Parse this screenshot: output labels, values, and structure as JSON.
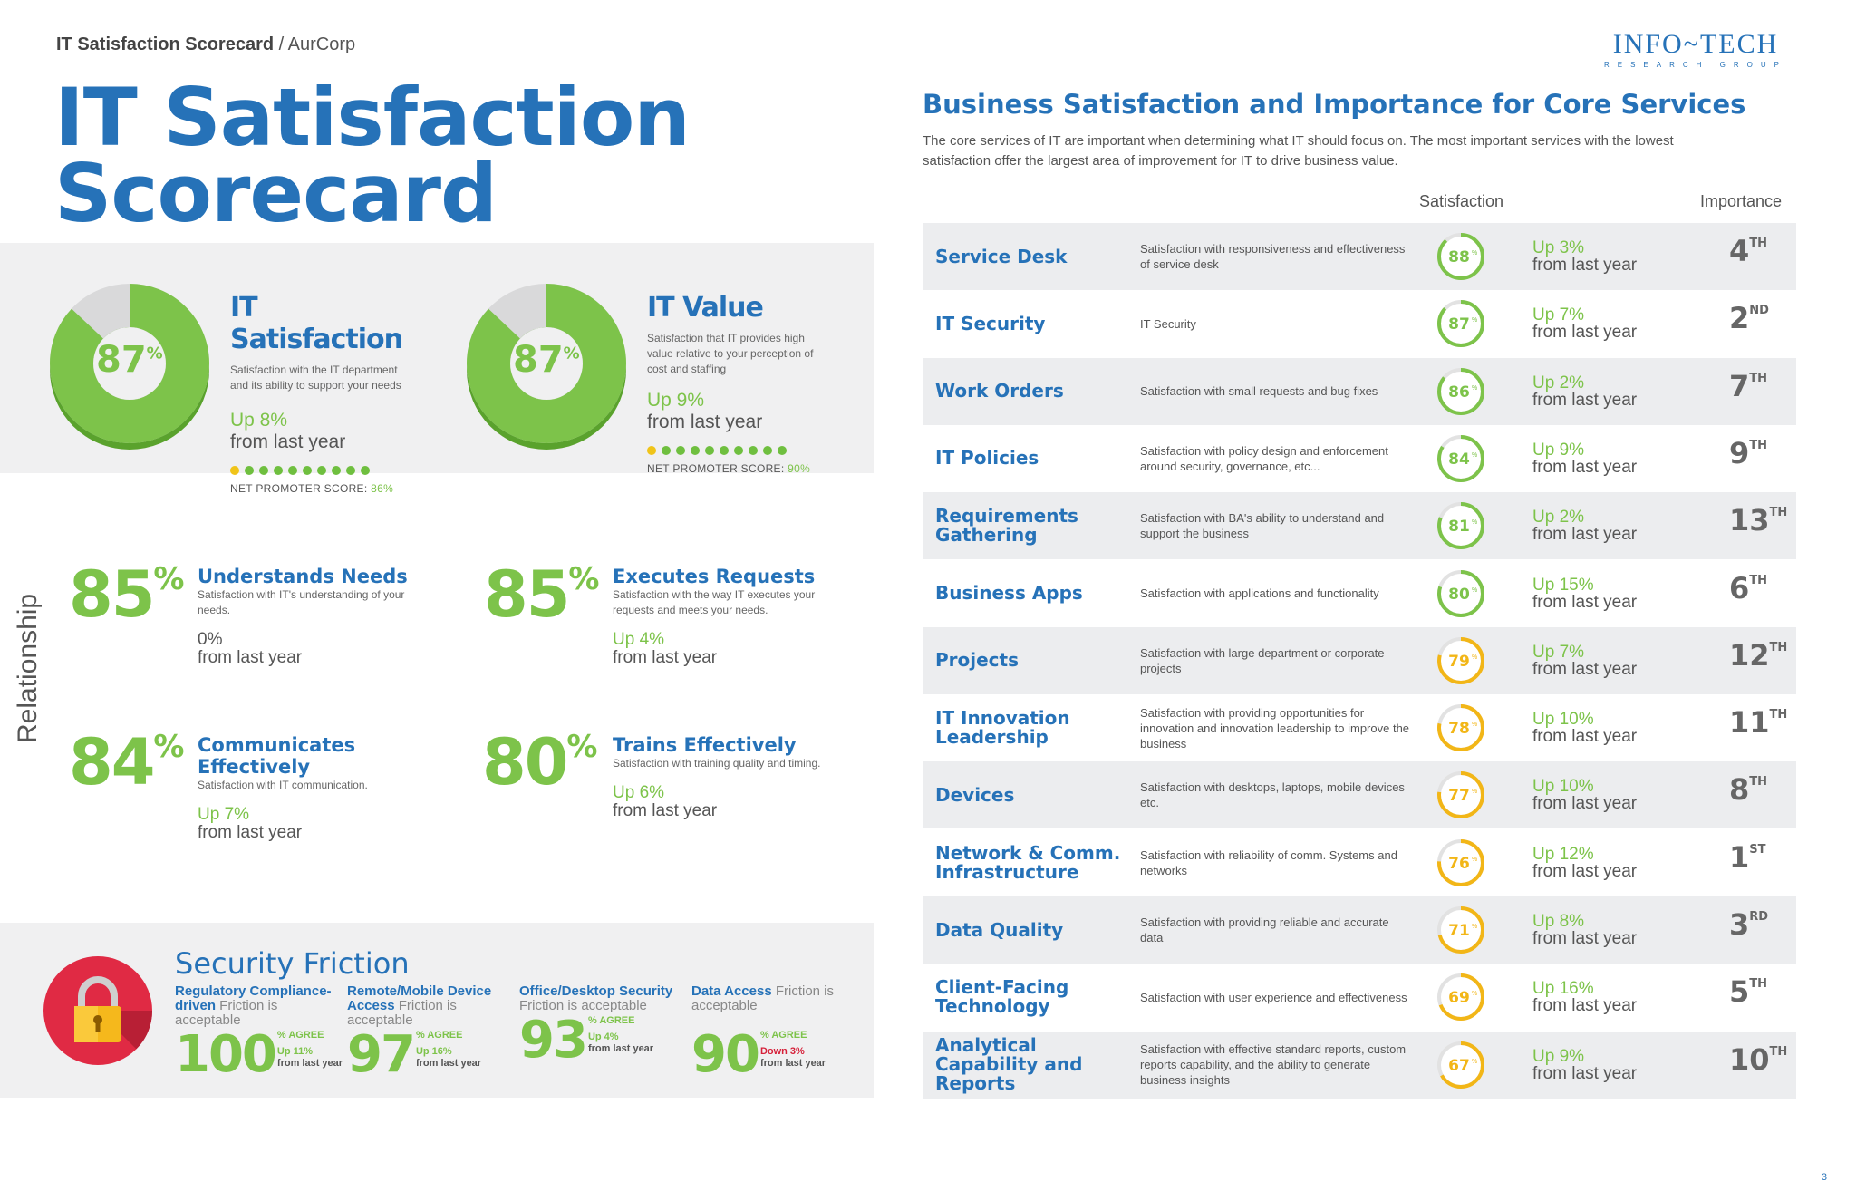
{
  "header": {
    "breadcrumb_title": "IT Satisfaction Scorecard",
    "breadcrumb_sep": " / ",
    "breadcrumb_org": "AurCorp"
  },
  "title_line1": "IT Satisfaction",
  "title_line2": "Scorecard",
  "logo": {
    "line1": "INFO~TECH",
    "line2": "RESEARCH GROUP"
  },
  "kpis": [
    {
      "title": "IT Satisfaction",
      "value": 87,
      "value_text": "87",
      "desc": "Satisfaction with the IT department and its ability to support your needs",
      "change": "Up 8%",
      "from": "from last year",
      "nps_label": "NET PROMOTER SCORE: ",
      "nps_value": "86%"
    },
    {
      "title": "IT Value",
      "value": 87,
      "value_text": "87",
      "desc": "Satisfaction that IT provides high value relative to your perception of cost and staffing",
      "change": "Up 9%",
      "from": "from last year",
      "nps_label": "NET PROMOTER SCORE: ",
      "nps_value": "90%"
    }
  ],
  "relationship": {
    "label": "Relationship",
    "metrics": [
      {
        "value": "85",
        "title": "Understands Needs",
        "desc": "Satisfaction with IT's understanding of your needs.",
        "change": "0%",
        "from": "from last year"
      },
      {
        "value": "85",
        "title": "Executes Requests",
        "desc": "Satisfaction with the way IT executes your requests and meets your needs.",
        "change": "Up 4%",
        "from": "from last year"
      },
      {
        "value": "84",
        "title": "Communicates Effectively",
        "desc": "Satisfaction with IT communication.",
        "change": "Up 7%",
        "from": "from last year"
      },
      {
        "value": "80",
        "title": "Trains Effectively",
        "desc": "Satisfaction with training quality and timing.",
        "change": "Up 6%",
        "from": "from last year"
      }
    ]
  },
  "security": {
    "title": "Security Friction",
    "items": [
      {
        "bold": "Regulatory Compliance-driven",
        "rest": " Friction is acceptable",
        "value": "100",
        "agree": "% AGREE",
        "change": "Up 11%",
        "from": "from last year",
        "dir": "up"
      },
      {
        "bold": "Remote/Mobile Device Access",
        "rest": " Friction is acceptable",
        "value": "97",
        "agree": "% AGREE",
        "change": "Up 16%",
        "from": "from last year",
        "dir": "up"
      },
      {
        "bold": "Office/Desktop Security",
        "rest": " Friction is acceptable",
        "value": "93",
        "agree": "% AGREE",
        "change": "Up 4%",
        "from": "from last year",
        "dir": "up"
      },
      {
        "bold": "Data Access",
        "rest": " Friction is acceptable",
        "value": "90",
        "agree": "% AGREE",
        "change": "Down 3%",
        "from": "from last year",
        "dir": "down"
      }
    ]
  },
  "core": {
    "title": "Business Satisfaction and Importance for Core Services",
    "desc": "The core services of IT are important when determining what IT should focus on. The most important services with the lowest satisfaction offer the largest area of improvement for IT to drive business value.",
    "col_satisfaction": "Satisfaction",
    "col_importance": "Importance",
    "rows": [
      {
        "name": "Service Desk",
        "desc": "Satisfaction with responsiveness and effectiveness of service desk",
        "value": 88,
        "change": "Up 3%",
        "from": "from last year",
        "rank": "4",
        "suffix": "TH"
      },
      {
        "name": "IT Security",
        "desc": "IT Security",
        "value": 87,
        "change": "Up 7%",
        "from": "from last year",
        "rank": "2",
        "suffix": "ND"
      },
      {
        "name": "Work Orders",
        "desc": "Satisfaction with small requests and bug fixes",
        "value": 86,
        "change": "Up 2%",
        "from": "from last year",
        "rank": "7",
        "suffix": "TH"
      },
      {
        "name": "IT Policies",
        "desc": "Satisfaction with policy design and enforcement around security, governance, etc...",
        "value": 84,
        "change": "Up 9%",
        "from": "from last year",
        "rank": "9",
        "suffix": "TH"
      },
      {
        "name": "Requirements Gathering",
        "desc": "Satisfaction with BA's ability to understand and support the business",
        "value": 81,
        "change": "Up 2%",
        "from": "from last year",
        "rank": "13",
        "suffix": "TH"
      },
      {
        "name": "Business Apps",
        "desc": "Satisfaction with applications and functionality",
        "value": 80,
        "change": "Up 15%",
        "from": "from last year",
        "rank": "6",
        "suffix": "TH"
      },
      {
        "name": "Projects",
        "desc": "Satisfaction with large department or corporate projects",
        "value": 79,
        "change": "Up 7%",
        "from": "from last year",
        "rank": "12",
        "suffix": "TH"
      },
      {
        "name": "IT Innovation Leadership",
        "desc": "Satisfaction with providing opportunities for innovation and innovation leadership to improve the business",
        "value": 78,
        "change": "Up 10%",
        "from": "from last year",
        "rank": "11",
        "suffix": "TH"
      },
      {
        "name": "Devices",
        "desc": "Satisfaction with desktops, laptops, mobile devices etc.",
        "value": 77,
        "change": "Up 10%",
        "from": "from last year",
        "rank": "8",
        "suffix": "TH"
      },
      {
        "name": "Network & Comm. Infrastructure",
        "desc": "Satisfaction with reliability of comm. Systems and networks",
        "value": 76,
        "change": "Up 12%",
        "from": "from last year",
        "rank": "1",
        "suffix": "ST"
      },
      {
        "name": "Data Quality",
        "desc": "Satisfaction with providing reliable and accurate data",
        "value": 71,
        "change": "Up 8%",
        "from": "from last year",
        "rank": "3",
        "suffix": "RD"
      },
      {
        "name": "Client-Facing Technology",
        "desc": "Satisfaction with user experience and effectiveness",
        "value": 69,
        "change": "Up 16%",
        "from": "from last year",
        "rank": "5",
        "suffix": "TH"
      },
      {
        "name": "Analytical Capability and Reports",
        "desc": "Satisfaction with effective standard reports, custom reports capability, and the ability to generate business insights",
        "value": 67,
        "change": "Up 9%",
        "from": "from last year",
        "rank": "10",
        "suffix": "TH"
      }
    ]
  },
  "colors": {
    "blue": "#2672b8",
    "green": "#7dc34a",
    "yellow": "#f2b617",
    "red": "#d6213a"
  },
  "page_number": "3"
}
